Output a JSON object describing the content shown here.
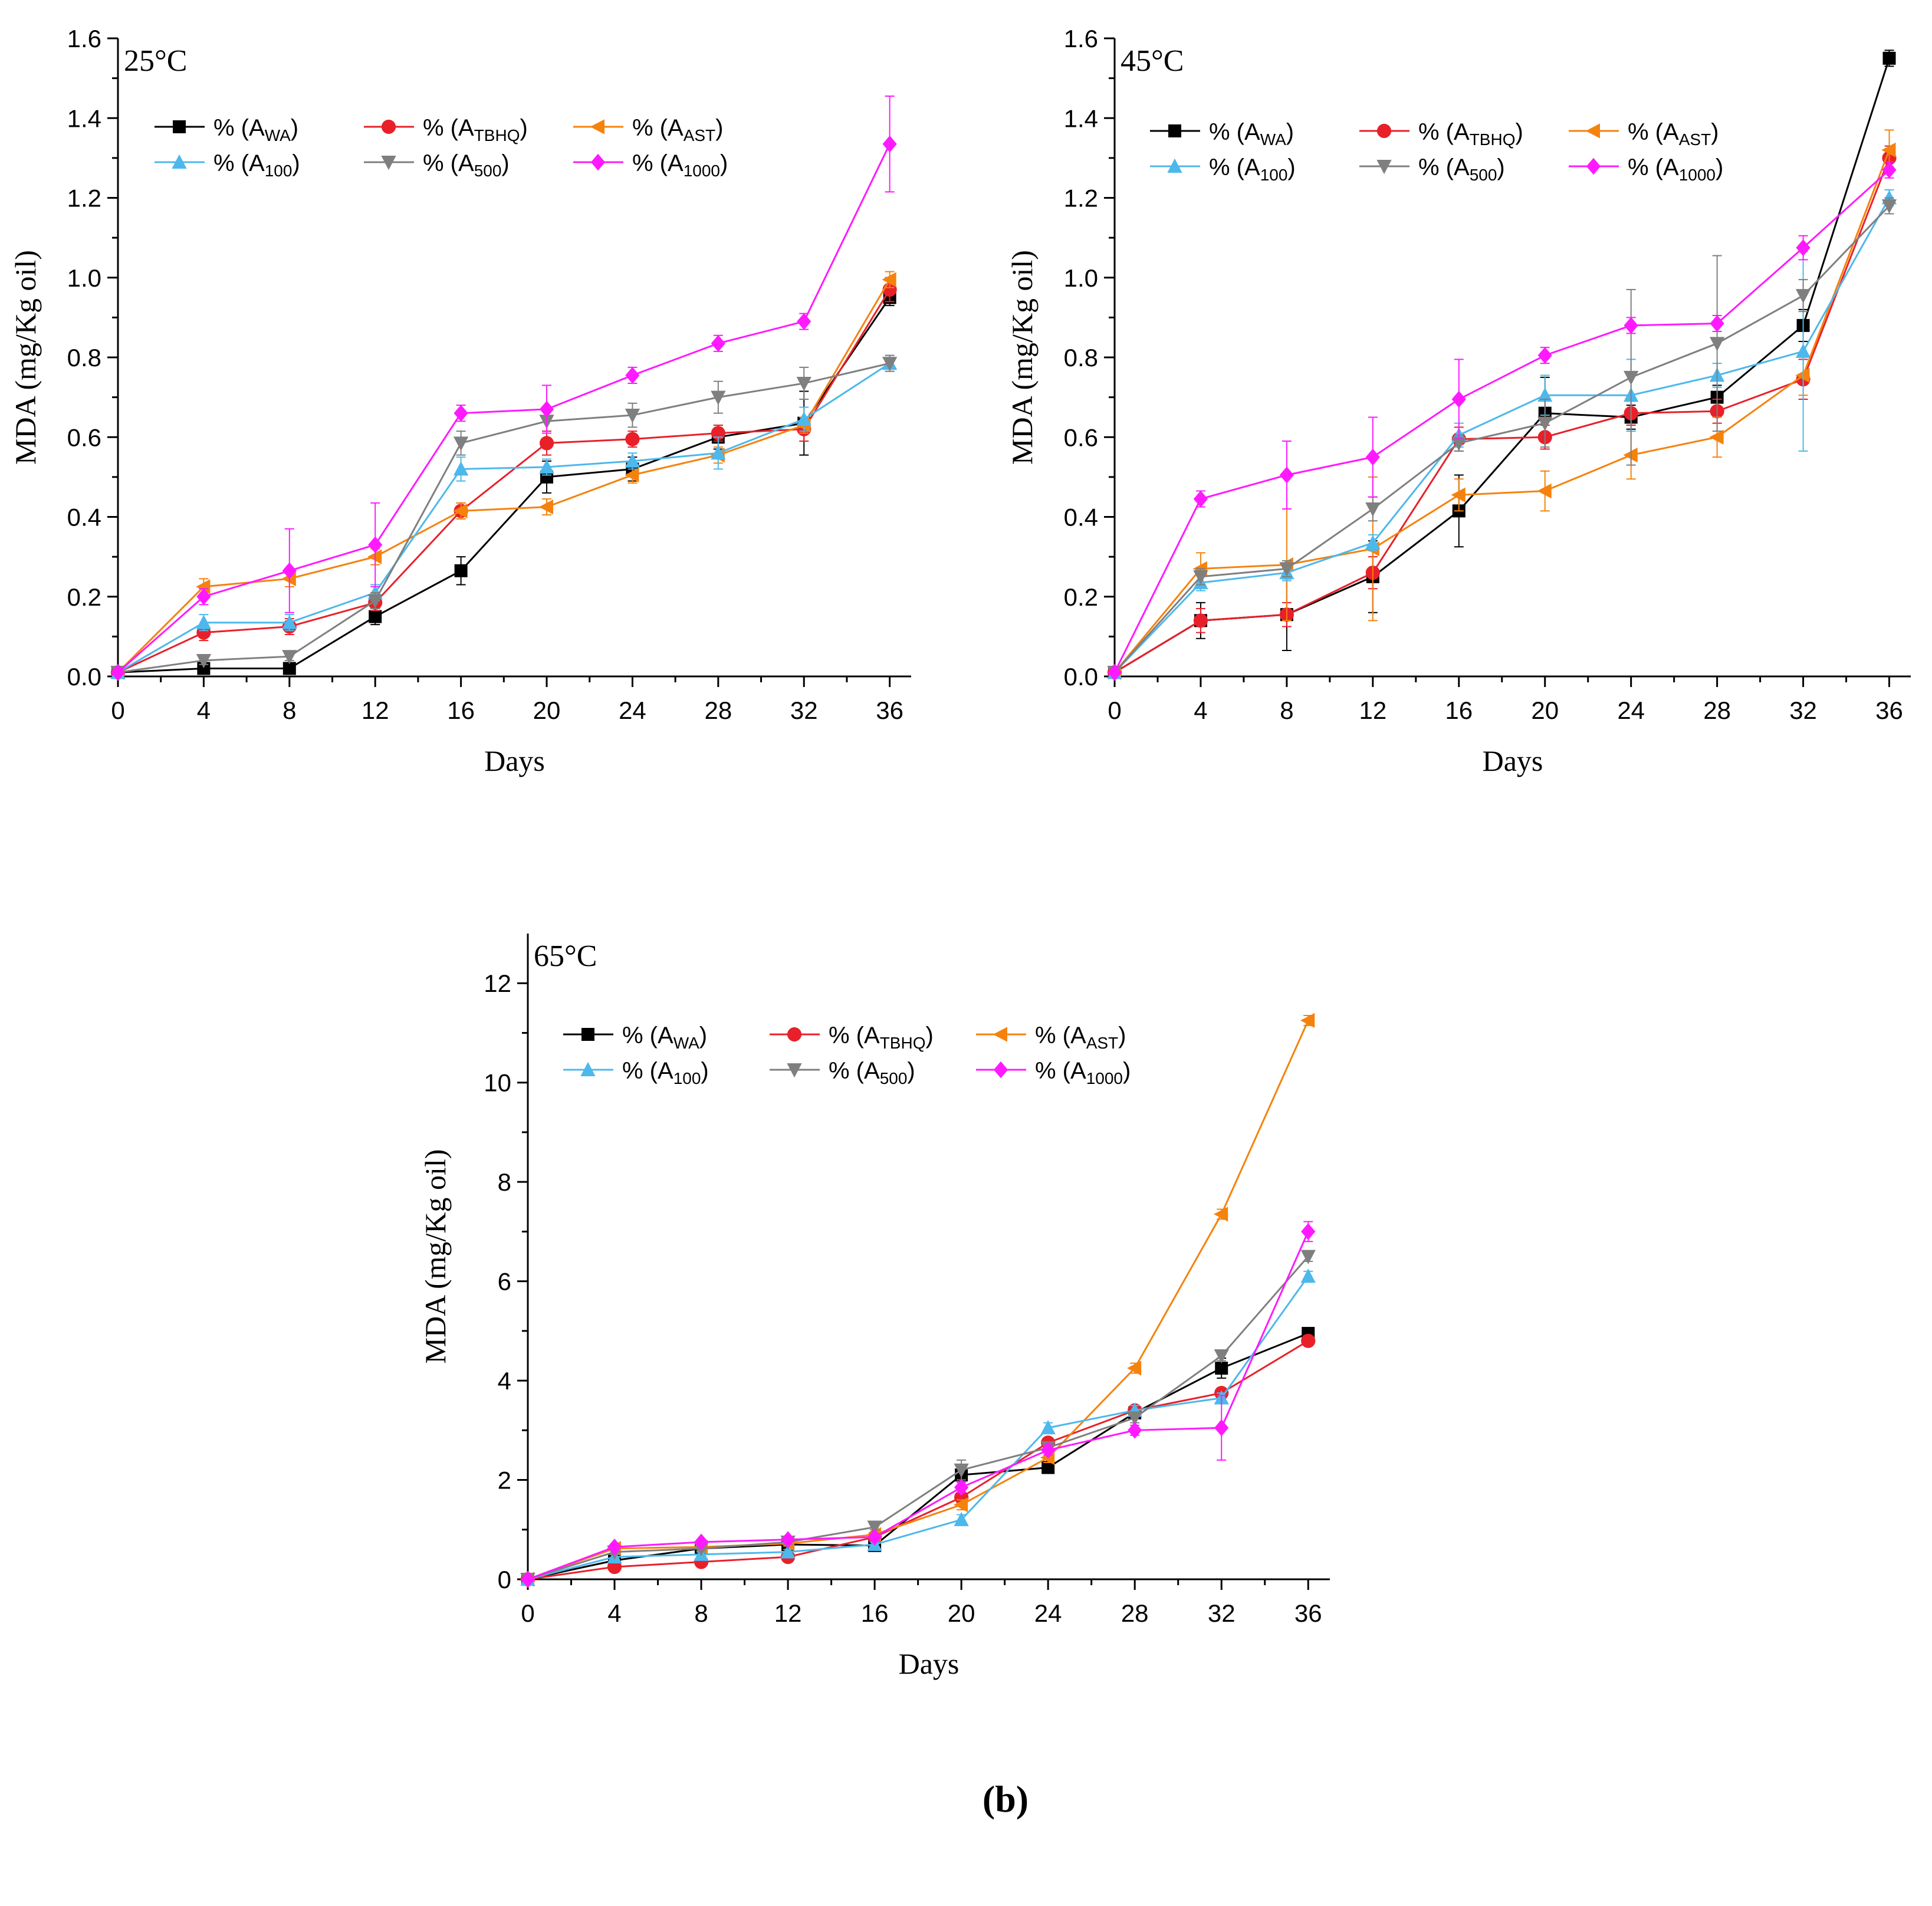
{
  "figure_caption": "(b)",
  "legend_labels": [
    {
      "prefix": "% (A",
      "sub": "WA",
      "suffix": ")"
    },
    {
      "prefix": "% (A",
      "sub": "TBHQ",
      "suffix": ")"
    },
    {
      "prefix": "% (A",
      "sub": "AST",
      "suffix": ")"
    },
    {
      "prefix": "% (A",
      "sub": "100",
      "suffix": ")"
    },
    {
      "prefix": "% (A",
      "sub": "500",
      "suffix": ")"
    },
    {
      "prefix": "% (A",
      "sub": "1000",
      "suffix": ")"
    }
  ],
  "series_style": [
    {
      "color": "#000000",
      "marker": "square"
    },
    {
      "color": "#e8202a",
      "marker": "circle"
    },
    {
      "color": "#f5820d",
      "marker": "triangle-left"
    },
    {
      "color": "#4db8ec",
      "marker": "triangle-up"
    },
    {
      "color": "#7f7f7f",
      "marker": "triangle-down"
    },
    {
      "color": "#ff19ff",
      "marker": "diamond"
    }
  ],
  "chart_data": [
    {
      "type": "line",
      "title": "25°C",
      "xlabel": "Days",
      "ylabel": "MDA (mg/Kg oil)",
      "x": [
        0,
        4,
        8,
        12,
        16,
        20,
        24,
        28,
        32,
        36
      ],
      "xlim": [
        0,
        37
      ],
      "ylim": [
        0,
        1.6
      ],
      "xticks": [
        0,
        4,
        8,
        12,
        16,
        20,
        24,
        28,
        32,
        36
      ],
      "yticks": [
        "0.0",
        "0.2",
        "0.4",
        "0.6",
        "0.8",
        "1.0",
        "1.2",
        "1.4",
        "1.6"
      ],
      "legend_position": "top-left",
      "series": [
        {
          "name": "% (AWA)",
          "values": [
            0.01,
            0.02,
            0.02,
            0.15,
            0.265,
            0.5,
            0.52,
            0.6,
            0.635,
            0.95
          ],
          "errors": [
            0,
            0.01,
            0.01,
            0.02,
            0.035,
            0.04,
            0.03,
            0.03,
            0.08,
            0.02
          ]
        },
        {
          "name": "% (ATBHQ)",
          "values": [
            0.01,
            0.11,
            0.125,
            0.185,
            0.415,
            0.585,
            0.595,
            0.61,
            0.62,
            0.97
          ],
          "errors": [
            0,
            0.02,
            0.02,
            0.02,
            0.02,
            0.03,
            0.02,
            0.02,
            0.03,
            0.03
          ]
        },
        {
          "name": "% (AAST)",
          "values": [
            0.01,
            0.225,
            0.245,
            0.3,
            0.415,
            0.425,
            0.505,
            0.555,
            0.63,
            0.995
          ],
          "errors": [
            0,
            0.02,
            0.02,
            0.02,
            0.02,
            0.02,
            0.02,
            0.02,
            0.02,
            0.02
          ]
        },
        {
          "name": "% (A100)",
          "values": [
            0.01,
            0.135,
            0.135,
            0.21,
            0.52,
            0.525,
            0.54,
            0.56,
            0.645,
            0.785
          ],
          "errors": [
            0,
            0.02,
            0.02,
            0.02,
            0.03,
            0.02,
            0.02,
            0.04,
            0.03,
            0.02
          ]
        },
        {
          "name": "% (A500)",
          "values": [
            0.01,
            0.04,
            0.05,
            0.19,
            0.585,
            0.64,
            0.655,
            0.7,
            0.735,
            0.785
          ],
          "errors": [
            0,
            0.01,
            0.01,
            0.02,
            0.03,
            0.03,
            0.03,
            0.04,
            0.04,
            0.02
          ]
        },
        {
          "name": "% (A1000)",
          "values": [
            0.01,
            0.2,
            0.265,
            0.33,
            0.66,
            0.67,
            0.755,
            0.835,
            0.89,
            1.335
          ],
          "errors": [
            0,
            0.02,
            0.105,
            0.105,
            0.02,
            0.06,
            0.02,
            0.02,
            0.02,
            0.12
          ]
        }
      ]
    },
    {
      "type": "line",
      "title": "45°C",
      "xlabel": "Days",
      "ylabel": "MDA (mg/Kg oil)",
      "x": [
        0,
        4,
        8,
        12,
        16,
        20,
        24,
        28,
        32,
        36
      ],
      "xlim": [
        0,
        37
      ],
      "ylim": [
        0,
        1.6
      ],
      "xticks": [
        0,
        4,
        8,
        12,
        16,
        20,
        24,
        28,
        32,
        36
      ],
      "yticks": [
        "0.0",
        "0.2",
        "0.4",
        "0.6",
        "0.8",
        "1.0",
        "1.2",
        "1.4",
        "1.6"
      ],
      "legend_position": "top-left",
      "series": [
        {
          "name": "% (AWA)",
          "values": [
            0.01,
            0.14,
            0.155,
            0.25,
            0.415,
            0.66,
            0.65,
            0.7,
            0.88,
            1.55
          ],
          "errors": [
            0,
            0.045,
            0.09,
            0.09,
            0.09,
            0.09,
            0.03,
            0.03,
            0.04,
            0.02
          ]
        },
        {
          "name": "% (ATBHQ)",
          "values": [
            0.01,
            0.14,
            0.155,
            0.26,
            0.595,
            0.6,
            0.66,
            0.665,
            0.745,
            1.3
          ],
          "errors": [
            0,
            0.03,
            0.03,
            0.04,
            0.03,
            0.03,
            0.03,
            0.03,
            0.05,
            0.03
          ]
        },
        {
          "name": "% (AAST)",
          "values": [
            0.01,
            0.27,
            0.28,
            0.32,
            0.455,
            0.465,
            0.555,
            0.6,
            0.755,
            1.32
          ],
          "errors": [
            0,
            0.04,
            0.14,
            0.18,
            0.04,
            0.05,
            0.06,
            0.05,
            0.05,
            0.05
          ]
        },
        {
          "name": "% (A100)",
          "values": [
            0.01,
            0.235,
            0.26,
            0.335,
            0.605,
            0.705,
            0.705,
            0.755,
            0.815,
            1.2
          ],
          "errors": [
            0,
            0.02,
            0.02,
            0.02,
            0.03,
            0.05,
            0.09,
            0.03,
            0.25,
            0.02
          ]
        },
        {
          "name": "% (A500)",
          "values": [
            0.01,
            0.25,
            0.27,
            0.42,
            0.585,
            0.635,
            0.75,
            0.835,
            0.955,
            1.18
          ],
          "errors": [
            0,
            0.02,
            0.02,
            0.03,
            0.02,
            0.06,
            0.22,
            0.22,
            0.04,
            0.02
          ]
        },
        {
          "name": "% (A1000)",
          "values": [
            0.01,
            0.445,
            0.505,
            0.55,
            0.695,
            0.805,
            0.88,
            0.885,
            1.075,
            1.27
          ],
          "errors": [
            0,
            0.02,
            0.085,
            0.1,
            0.1,
            0.02,
            0.02,
            0.02,
            0.03,
            0.02
          ]
        }
      ]
    },
    {
      "type": "line",
      "title": "65°C",
      "xlabel": "Days",
      "ylabel": "MDA (mg/Kg oil)",
      "x": [
        0,
        4,
        8,
        12,
        16,
        20,
        24,
        28,
        32,
        36
      ],
      "xlim": [
        0,
        37
      ],
      "ylim": [
        0,
        13
      ],
      "xticks": [
        0,
        4,
        8,
        12,
        16,
        20,
        24,
        28,
        32,
        36
      ],
      "yticks": [
        "0",
        "2",
        "4",
        "6",
        "8",
        "10",
        "12"
      ],
      "legend_position": "top-left",
      "series": [
        {
          "name": "% (AWA)",
          "values": [
            0.0,
            0.38,
            0.62,
            0.7,
            0.68,
            2.1,
            2.25,
            3.35,
            4.25,
            4.95
          ],
          "errors": [
            0,
            0.05,
            0.05,
            0.05,
            0.05,
            0.1,
            0.1,
            0.1,
            0.2,
            0.1
          ]
        },
        {
          "name": "% (ATBHQ)",
          "values": [
            0.0,
            0.25,
            0.35,
            0.45,
            0.85,
            1.65,
            2.75,
            3.4,
            3.75,
            4.8
          ],
          "errors": [
            0,
            0.05,
            0.05,
            0.05,
            0.05,
            0.1,
            0.1,
            0.1,
            0.1,
            0.1
          ]
        },
        {
          "name": "% (AAST)",
          "values": [
            0.0,
            0.62,
            0.65,
            0.72,
            0.9,
            1.5,
            2.45,
            4.25,
            7.35,
            11.25
          ],
          "errors": [
            0,
            0.05,
            0.05,
            0.05,
            0.05,
            0.1,
            0.1,
            0.1,
            0.1,
            0.1
          ]
        },
        {
          "name": "% (A100)",
          "values": [
            0.0,
            0.45,
            0.5,
            0.55,
            0.7,
            1.2,
            3.05,
            3.4,
            3.65,
            6.1
          ],
          "errors": [
            0,
            0.05,
            0.05,
            0.05,
            0.05,
            0.1,
            0.1,
            0.1,
            0.1,
            0.1
          ]
        },
        {
          "name": "% (A500)",
          "values": [
            0.0,
            0.55,
            0.62,
            0.75,
            1.05,
            2.2,
            2.65,
            3.25,
            4.5,
            6.5
          ],
          "errors": [
            0,
            0.05,
            0.05,
            0.05,
            0.05,
            0.2,
            0.1,
            0.1,
            0.1,
            0.1
          ]
        },
        {
          "name": "% (A1000)",
          "values": [
            0.0,
            0.65,
            0.75,
            0.8,
            0.85,
            1.85,
            2.6,
            3.0,
            3.05,
            7.0
          ],
          "errors": [
            0,
            0.05,
            0.05,
            0.05,
            0.05,
            0.1,
            0.1,
            0.1,
            0.65,
            0.2
          ]
        }
      ]
    }
  ]
}
